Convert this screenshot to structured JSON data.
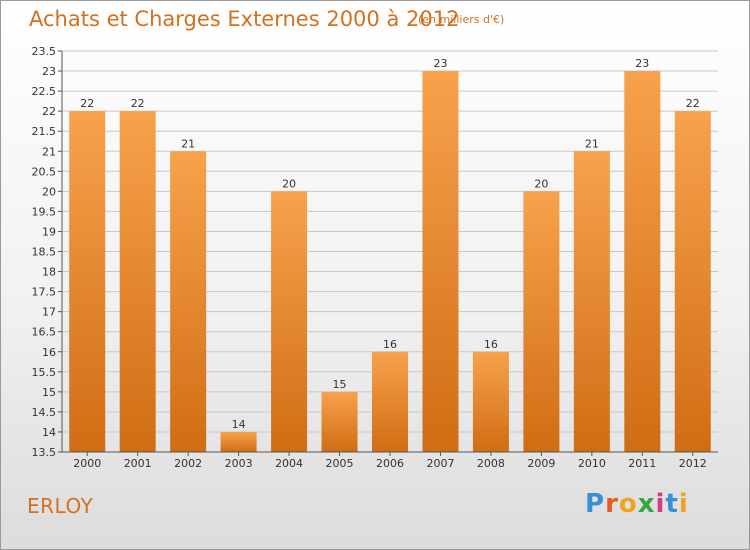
{
  "chart_data": {
    "type": "bar",
    "title": "Achats et Charges Externes 2000 à 2012",
    "subtitle": "(en milliers d'€)",
    "categories": [
      "2000",
      "2001",
      "2002",
      "2003",
      "2004",
      "2005",
      "2006",
      "2007",
      "2008",
      "2009",
      "2010",
      "2011",
      "2012"
    ],
    "values": [
      22,
      22,
      21,
      14,
      20,
      15,
      16,
      23,
      16,
      20,
      21,
      23,
      22
    ],
    "data_labels": [
      "22",
      "22",
      "21",
      "14",
      "20",
      "15",
      "16",
      "23",
      "16",
      "20",
      "21",
      "23",
      "22"
    ],
    "ylim": [
      13.5,
      23.5
    ],
    "yticks": [
      "13.5",
      "14",
      "14.5",
      "15",
      "15.5",
      "16",
      "16.5",
      "17",
      "17.5",
      "18",
      "18.5",
      "19",
      "19.5",
      "20",
      "20.5",
      "21",
      "21.5",
      "22",
      "22.5",
      "23",
      "23.5"
    ],
    "grid": true,
    "xlabel": "",
    "ylabel": "",
    "bar_color_top": "#f7a24c",
    "bar_color_bottom": "#d06d14"
  },
  "footer": {
    "commune": "ERLOY",
    "logo_text": "Proxiti"
  },
  "colors": {
    "accent": "#d4701e",
    "grid": "#c8c8c8",
    "axis": "#555555"
  }
}
